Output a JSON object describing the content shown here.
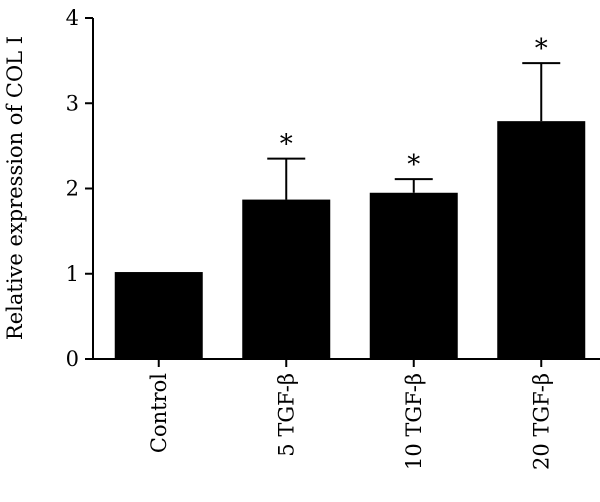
{
  "chart_data": {
    "type": "bar",
    "categories": [
      "Control",
      "5 TGF-β",
      "10 TGF-β",
      "20 TGF-β"
    ],
    "values": [
      1.02,
      1.87,
      1.95,
      2.79
    ],
    "errors": [
      0,
      0.48,
      0.16,
      0.68
    ],
    "significance": [
      "",
      "*",
      "*",
      "*"
    ],
    "ylabel": "Relative expression of COL I",
    "xlabel": "",
    "ylim": [
      0,
      4
    ],
    "yticks": [
      0,
      1,
      2,
      3,
      4
    ],
    "colors": {
      "bar": "#000000",
      "axis": "#000000"
    },
    "grid": false,
    "legend": "none"
  }
}
